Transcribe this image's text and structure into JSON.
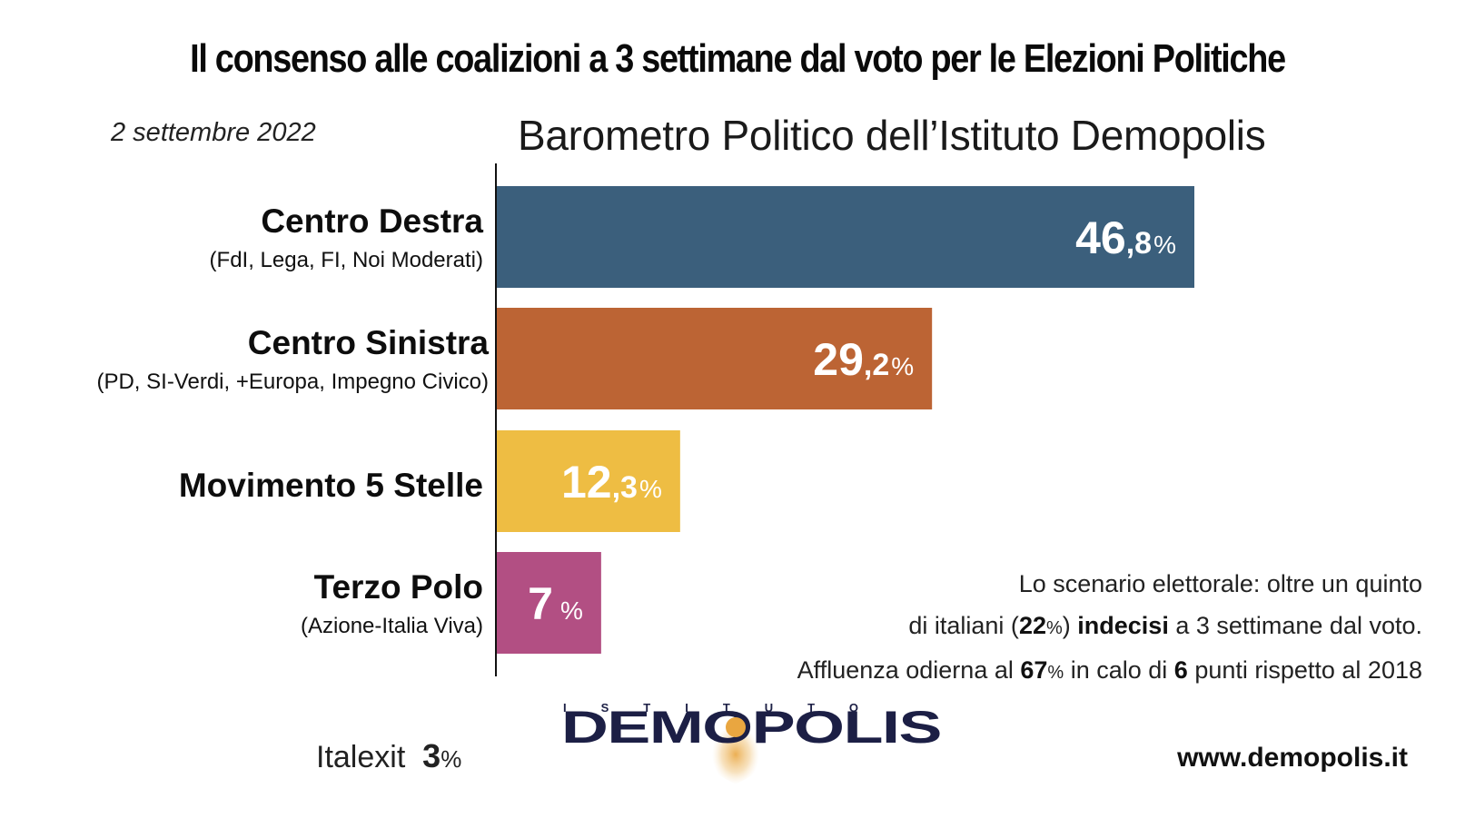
{
  "header": {
    "title": "Il consenso alle coalizioni a 3 settimane dal voto per le Elezioni Politiche",
    "date": "2 settembre 2022",
    "subtitle": "Barometro Politico dell’Istituto Demopolis"
  },
  "chart_data": {
    "type": "bar",
    "orientation": "horizontal",
    "title": "Il consenso alle coalizioni a 3 settimane dal voto per le Elezioni Politiche",
    "subtitle": "Barometro Politico dell’Istituto Demopolis",
    "xlabel": "",
    "ylabel": "",
    "unit": "%",
    "xlim": [
      0,
      100
    ],
    "grid": false,
    "legend": "none",
    "categories": [
      "Centro Destra",
      "Centro Sinistra",
      "Movimento 5 Stelle",
      "Terzo Polo"
    ],
    "sublabels": [
      "(FdI, Lega, FI, Noi Moderati)",
      "(PD, SI-Verdi, +Europa, Impegno Civico)",
      "",
      "(Azione-Italia Viva)"
    ],
    "values": [
      46.8,
      29.2,
      12.3,
      7
    ],
    "value_labels": [
      {
        "main": "46",
        "dec": ",8",
        "pct": "%"
      },
      {
        "main": "29",
        "dec": ",2",
        "pct": "%"
      },
      {
        "main": "12",
        "dec": ",3",
        "pct": "%"
      },
      {
        "main": "7",
        "dec": "",
        "pct": "%"
      }
    ],
    "colors": [
      "#3b5f7c",
      "#bc6434",
      "#eebd43",
      "#b24f83"
    ]
  },
  "note": {
    "line1": "Lo scenario elettorale: oltre un quinto",
    "line2_pre": "di italiani (",
    "line2_num": "22",
    "line2_pct": "%",
    "line2_mid": ") ",
    "line2_bold": "indecisi",
    "line2_post": " a 3 settimane dal voto.",
    "line3_pre": "Affluenza odierna al ",
    "line3_num": "67",
    "line3_pct": "%",
    "line3_mid": " in calo di ",
    "line3_bold": "6",
    "line3_post": " punti rispetto al 2018"
  },
  "footer": {
    "italexit_label": "Italexit",
    "italexit_value": "3",
    "italexit_pct": "%",
    "logo_top": "I S T I T U T O",
    "logo_main": "DEMOPOLIS",
    "website": "www.demopolis.it",
    "logo_color": "#1c1f45",
    "logo_accent": "#e9a640"
  }
}
